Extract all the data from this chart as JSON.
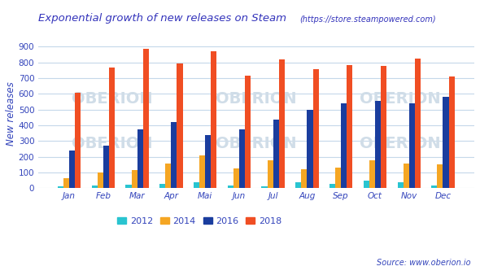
{
  "title_main": "Exponential growth of new releases on Steam",
  "title_sub": "(https://store.steampowered.com)",
  "ylabel": "New releases",
  "source_text": "Source: www.oberion.io",
  "months": [
    "Jan",
    "Feb",
    "Mar",
    "Apr",
    "Mai",
    "Jun",
    "Jul",
    "Aug",
    "Sep",
    "Oct",
    "Nov",
    "Dec"
  ],
  "series": {
    "2012": [
      15,
      20,
      25,
      30,
      40,
      20,
      15,
      40,
      30,
      50,
      40,
      20
    ],
    "2014": [
      65,
      100,
      115,
      160,
      210,
      125,
      180,
      120,
      130,
      180,
      155,
      150
    ],
    "2016": [
      240,
      270,
      375,
      420,
      340,
      375,
      435,
      500,
      540,
      555,
      540,
      580
    ],
    "2018": [
      605,
      765,
      885,
      795,
      870,
      715,
      820,
      755,
      780,
      775,
      825,
      710
    ]
  },
  "colors": {
    "2012": "#29C4D0",
    "2014": "#F5A623",
    "2016": "#1A3D9E",
    "2018": "#F04E23"
  },
  "background_color": "#ffffff",
  "grid_color": "#c5d8ea",
  "watermark_color": "#d0dde8",
  "title_color": "#3333bb",
  "axis_label_color": "#3344bb",
  "tick_color": "#3344bb",
  "ylim": [
    0,
    950
  ],
  "yticks": [
    0,
    100,
    200,
    300,
    400,
    500,
    600,
    700,
    800,
    900
  ],
  "legend_labels": [
    "2012",
    "2014",
    "2016",
    "2018"
  ],
  "bar_width": 0.17
}
